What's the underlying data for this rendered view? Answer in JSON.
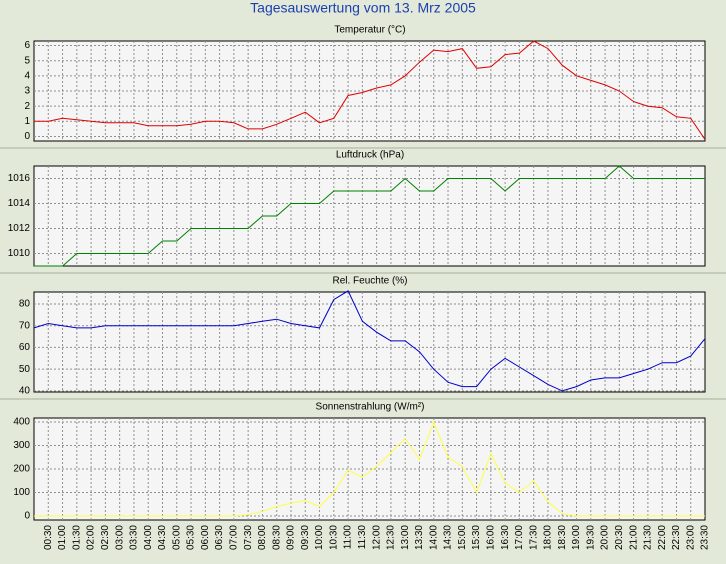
{
  "title": "Tagesauswertung vom 13. Mrz 2005",
  "chart_data": [
    {
      "type": "line",
      "title": "Temperatur (°C)",
      "color": "#e00000",
      "ylim": [
        -0.3,
        6.3
      ],
      "yticks": [
        0,
        1,
        2,
        3,
        4,
        5,
        6
      ],
      "grid": true,
      "values": [
        1.0,
        1.0,
        1.2,
        1.1,
        1.0,
        0.9,
        0.9,
        0.9,
        0.7,
        0.7,
        0.7,
        0.8,
        1.0,
        1.0,
        0.9,
        0.5,
        0.5,
        0.8,
        1.2,
        1.6,
        0.9,
        1.2,
        2.7,
        2.9,
        3.2,
        3.4,
        4.0,
        4.9,
        5.7,
        5.6,
        5.8,
        4.5,
        4.6,
        5.4,
        5.5,
        6.3,
        5.8,
        4.7,
        4.0,
        3.7,
        3.4,
        3.0,
        2.3,
        2.0,
        1.9,
        1.3,
        1.2,
        -0.2
      ]
    },
    {
      "type": "line",
      "title": "Luftdruck (hPa)",
      "color": "#008000",
      "ylim": [
        1009,
        1017
      ],
      "yticks": [
        1010,
        1012,
        1014,
        1016
      ],
      "grid": true,
      "values": [
        1009,
        1009,
        1009,
        1010,
        1010,
        1010,
        1010,
        1010,
        1010,
        1011,
        1011,
        1012,
        1012,
        1012,
        1012,
        1012,
        1013,
        1013,
        1014,
        1014,
        1014,
        1015,
        1015,
        1015,
        1015,
        1015,
        1016,
        1015,
        1015,
        1016,
        1016,
        1016,
        1016,
        1015,
        1016,
        1016,
        1016,
        1016,
        1016,
        1016,
        1016,
        1017,
        1016,
        1016,
        1016,
        1016,
        1016,
        1016
      ]
    },
    {
      "type": "line",
      "title": "Rel. Feuchte (%)",
      "color": "#0000cc",
      "ylim": [
        39.5,
        85.5
      ],
      "yticks": [
        40,
        50,
        60,
        70,
        80
      ],
      "grid": true,
      "values": [
        69,
        71,
        70,
        69,
        69,
        70,
        70,
        70,
        70,
        70,
        70,
        70,
        70,
        70,
        70,
        71,
        72,
        73,
        71,
        70,
        69,
        82,
        86,
        72,
        67,
        63,
        63,
        58,
        50,
        44,
        42,
        42,
        50,
        55,
        51,
        47,
        43,
        40,
        42,
        45,
        46,
        46,
        48,
        50,
        53,
        53,
        56,
        64
      ]
    },
    {
      "type": "line",
      "title": "Sonnenstrahlung (W/m²)",
      "color": "#ffff40",
      "ylim": [
        -17,
        417
      ],
      "yticks": [
        0,
        100,
        200,
        300,
        400
      ],
      "grid": true,
      "values": [
        0,
        0,
        0,
        0,
        0,
        0,
        0,
        0,
        0,
        0,
        0,
        0,
        0,
        0,
        0,
        5,
        20,
        40,
        55,
        65,
        40,
        100,
        195,
        165,
        210,
        270,
        330,
        240,
        400,
        250,
        210,
        100,
        265,
        140,
        100,
        150,
        60,
        10,
        0,
        0,
        0,
        0,
        0,
        0,
        0,
        0,
        0,
        0
      ],
      "categories": [
        null,
        "00:30",
        "01:00",
        "01:30",
        "02:00",
        "02:30",
        "03:00",
        "03:30",
        "04:00",
        "04:30",
        "05:00",
        "05:30",
        "06:00",
        "06:30",
        "07:00",
        "07:30",
        "08:00",
        "08:30",
        "09:00",
        "09:30",
        "10:00",
        "10:30",
        "11:00",
        "11:30",
        "12:00",
        "12:30",
        "13:00",
        "13:30",
        "14:00",
        "14:30",
        "15:00",
        "15:30",
        "16:00",
        "16:30",
        "17:00",
        "17:30",
        "18:00",
        "18:30",
        "19:00",
        "19:30",
        "20:00",
        "20:30",
        "21:00",
        "21:30",
        "22:00",
        "22:30",
        "23:00",
        "23:30"
      ]
    }
  ]
}
